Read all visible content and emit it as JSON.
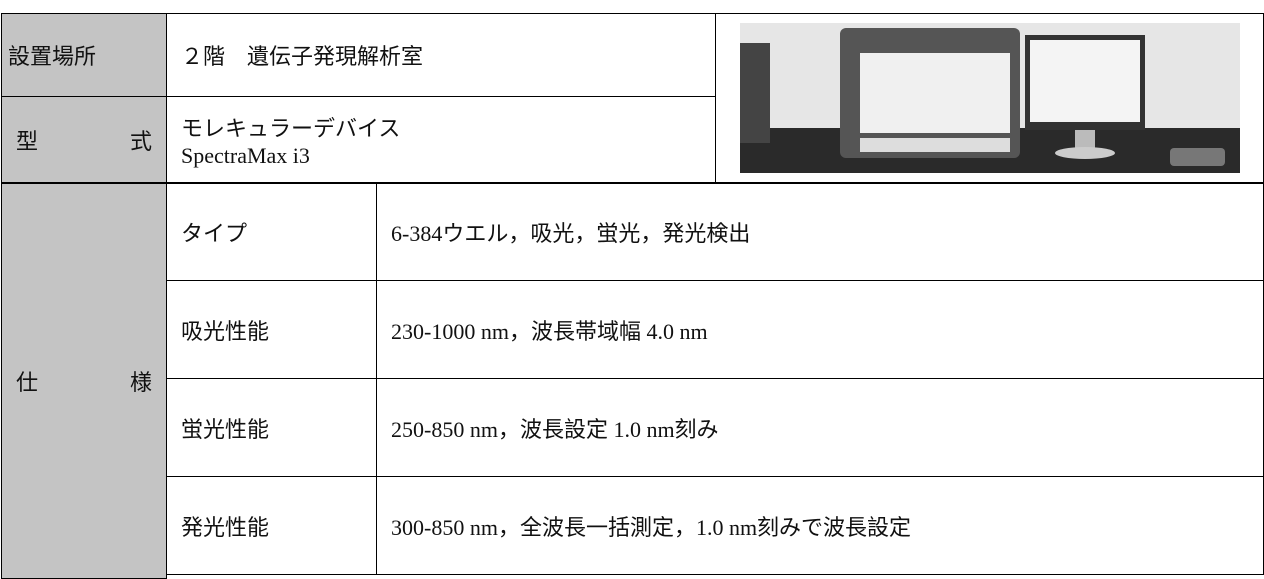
{
  "table": {
    "location": {
      "label": "設置場所",
      "value": "２階　遺伝子発現解析室"
    },
    "model": {
      "label": [
        "型",
        "式"
      ],
      "value": [
        "モレキュラーデバイス",
        "SpectraMax i3"
      ]
    },
    "spec": {
      "label": [
        "仕",
        "様"
      ],
      "rows": [
        [
          "タイプ",
          "6-384ウエル，吸光，蛍光，発光検出"
        ],
        [
          "吸光性能",
          "230-1000 nm，波長帯域幅  4.0 nm"
        ],
        [
          "蛍光性能",
          "250-850 nm，波長設定  1.0 nm刻み"
        ],
        [
          "発光性能",
          "300-850 nm，全波長一括測定，1.0 nm刻みで波長設定"
        ]
      ]
    }
  }
}
